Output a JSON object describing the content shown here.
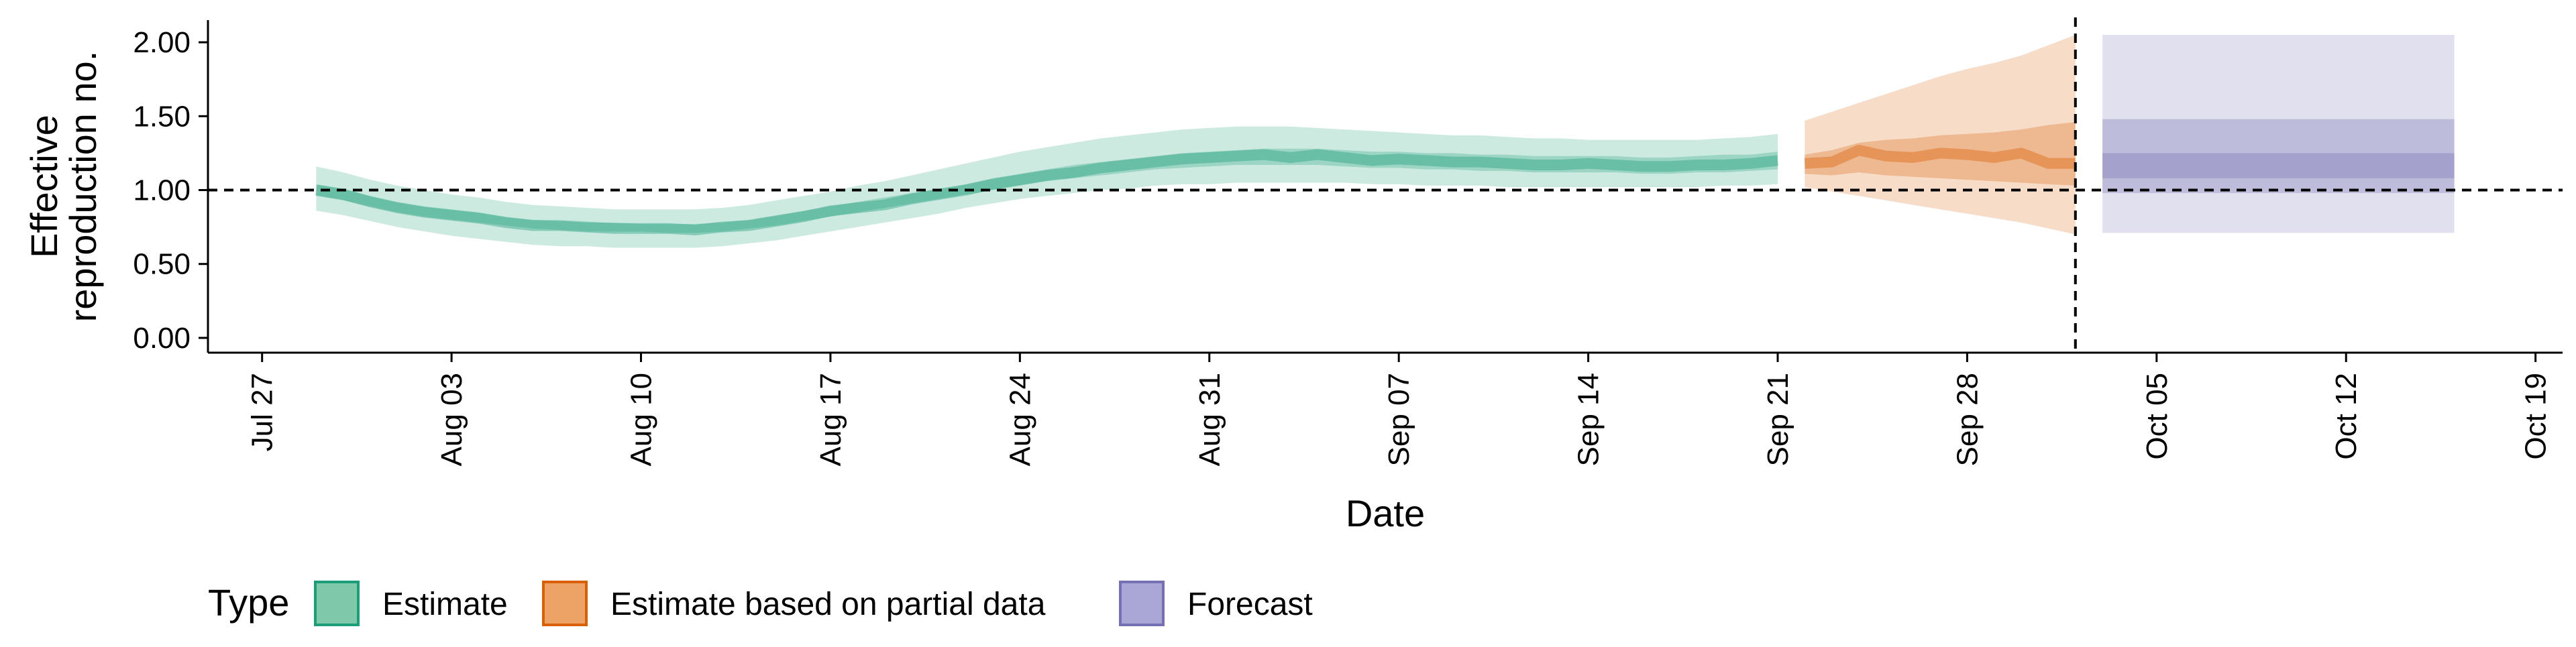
{
  "chart_data": {
    "type": "line",
    "title": "",
    "xlabel": "Date",
    "ylabel_lines": [
      "Effective",
      "reproduction no."
    ],
    "y_ticks": [
      "0.00",
      "0.50",
      "1.00",
      "1.50",
      "2.00"
    ],
    "y_tick_values": [
      0,
      0.5,
      1,
      1.5,
      2
    ],
    "ylim": [
      -0.1,
      2.15
    ],
    "x_range": [
      "2020-07-25",
      "2020-10-20"
    ],
    "x_ticks": [
      "Jul 27",
      "Aug 03",
      "Aug 10",
      "Aug 17",
      "Aug 24",
      "Aug 31",
      "Sep 07",
      "Sep 14",
      "Sep 21",
      "Sep 28",
      "Oct 05",
      "Oct 12",
      "Oct 19"
    ],
    "x_tick_dates": [
      "2020-07-27",
      "2020-08-03",
      "2020-08-10",
      "2020-08-17",
      "2020-08-24",
      "2020-08-31",
      "2020-09-07",
      "2020-09-14",
      "2020-09-21",
      "2020-09-28",
      "2020-10-05",
      "2020-10-12",
      "2020-10-19"
    ],
    "reference_line_y": 1.0,
    "forecast_date": "2020-10-02",
    "grid": false,
    "legend": {
      "title": "Type",
      "position": "bottom",
      "items": [
        {
          "label": "Estimate",
          "fill": "#7fc9aa",
          "stroke": "#1b9e77"
        },
        {
          "label": "Estimate based on partial data",
          "fill": "#eea366",
          "stroke": "#d95f02"
        },
        {
          "label": "Forecast",
          "fill": "#aaa7d6",
          "stroke": "#7570b3"
        }
      ]
    },
    "series": [
      {
        "name": "Estimate",
        "color": "#1b9e77",
        "x": [
          "2020-07-29",
          "2020-07-30",
          "2020-07-31",
          "2020-08-01",
          "2020-08-02",
          "2020-08-03",
          "2020-08-04",
          "2020-08-05",
          "2020-08-06",
          "2020-08-07",
          "2020-08-08",
          "2020-08-09",
          "2020-08-10",
          "2020-08-11",
          "2020-08-12",
          "2020-08-13",
          "2020-08-14",
          "2020-08-15",
          "2020-08-16",
          "2020-08-17",
          "2020-08-18",
          "2020-08-19",
          "2020-08-20",
          "2020-08-21",
          "2020-08-22",
          "2020-08-23",
          "2020-08-24",
          "2020-08-25",
          "2020-08-26",
          "2020-08-27",
          "2020-08-28",
          "2020-08-29",
          "2020-08-30",
          "2020-08-31",
          "2020-09-01",
          "2020-09-02",
          "2020-09-03",
          "2020-09-04",
          "2020-09-05",
          "2020-09-06",
          "2020-09-07",
          "2020-09-08",
          "2020-09-09",
          "2020-09-10",
          "2020-09-11",
          "2020-09-12",
          "2020-09-13",
          "2020-09-14",
          "2020-09-15",
          "2020-09-16",
          "2020-09-17",
          "2020-09-18",
          "2020-09-19",
          "2020-09-20",
          "2020-09-21"
        ],
        "median": [
          1.0,
          0.97,
          0.92,
          0.88,
          0.85,
          0.83,
          0.81,
          0.78,
          0.76,
          0.76,
          0.75,
          0.74,
          0.74,
          0.74,
          0.73,
          0.75,
          0.76,
          0.79,
          0.82,
          0.86,
          0.88,
          0.9,
          0.94,
          0.97,
          1.0,
          1.04,
          1.07,
          1.1,
          1.12,
          1.15,
          1.17,
          1.19,
          1.21,
          1.22,
          1.23,
          1.24,
          1.22,
          1.24,
          1.22,
          1.2,
          1.21,
          1.2,
          1.19,
          1.19,
          1.18,
          1.17,
          1.17,
          1.18,
          1.17,
          1.16,
          1.16,
          1.17,
          1.17,
          1.18,
          1.2
        ],
        "lower_50": [
          0.96,
          0.93,
          0.89,
          0.85,
          0.82,
          0.8,
          0.78,
          0.76,
          0.74,
          0.73,
          0.72,
          0.72,
          0.72,
          0.71,
          0.71,
          0.72,
          0.74,
          0.76,
          0.79,
          0.82,
          0.85,
          0.88,
          0.91,
          0.94,
          0.97,
          1.0,
          1.03,
          1.06,
          1.08,
          1.1,
          1.12,
          1.14,
          1.15,
          1.16,
          1.17,
          1.17,
          1.17,
          1.17,
          1.16,
          1.15,
          1.15,
          1.14,
          1.14,
          1.13,
          1.13,
          1.12,
          1.12,
          1.12,
          1.12,
          1.11,
          1.11,
          1.12,
          1.12,
          1.13,
          1.14
        ],
        "upper_50": [
          1.04,
          1.01,
          0.96,
          0.92,
          0.89,
          0.87,
          0.85,
          0.82,
          0.8,
          0.79,
          0.78,
          0.78,
          0.77,
          0.77,
          0.77,
          0.78,
          0.8,
          0.83,
          0.86,
          0.89,
          0.92,
          0.95,
          0.98,
          1.01,
          1.04,
          1.08,
          1.11,
          1.14,
          1.17,
          1.19,
          1.21,
          1.23,
          1.25,
          1.26,
          1.27,
          1.28,
          1.28,
          1.28,
          1.27,
          1.26,
          1.26,
          1.25,
          1.25,
          1.24,
          1.24,
          1.23,
          1.23,
          1.23,
          1.23,
          1.22,
          1.22,
          1.23,
          1.24,
          1.24,
          1.26
        ],
        "lower_90": [
          0.86,
          0.83,
          0.79,
          0.75,
          0.72,
          0.69,
          0.67,
          0.65,
          0.63,
          0.62,
          0.62,
          0.61,
          0.61,
          0.61,
          0.61,
          0.62,
          0.64,
          0.66,
          0.69,
          0.72,
          0.75,
          0.78,
          0.81,
          0.84,
          0.88,
          0.91,
          0.94,
          0.96,
          0.98,
          1.0,
          1.01,
          1.03,
          1.04,
          1.04,
          1.05,
          1.05,
          1.05,
          1.05,
          1.05,
          1.04,
          1.04,
          1.03,
          1.03,
          1.03,
          1.02,
          1.02,
          1.02,
          1.02,
          1.02,
          1.02,
          1.02,
          1.02,
          1.03,
          1.03,
          1.04
        ],
        "upper_90": [
          1.16,
          1.12,
          1.07,
          1.03,
          1.0,
          0.97,
          0.95,
          0.92,
          0.9,
          0.89,
          0.88,
          0.87,
          0.87,
          0.87,
          0.87,
          0.88,
          0.9,
          0.93,
          0.96,
          0.99,
          1.03,
          1.06,
          1.1,
          1.14,
          1.18,
          1.22,
          1.26,
          1.29,
          1.32,
          1.35,
          1.37,
          1.39,
          1.41,
          1.42,
          1.43,
          1.43,
          1.43,
          1.42,
          1.41,
          1.4,
          1.39,
          1.38,
          1.37,
          1.37,
          1.36,
          1.35,
          1.35,
          1.34,
          1.34,
          1.34,
          1.34,
          1.34,
          1.35,
          1.36,
          1.38
        ]
      },
      {
        "name": "Estimate based on partial data",
        "color": "#d95f02",
        "x": [
          "2020-09-22",
          "2020-09-23",
          "2020-09-24",
          "2020-09-25",
          "2020-09-26",
          "2020-09-27",
          "2020-09-28",
          "2020-09-29",
          "2020-09-30",
          "2020-10-01",
          "2020-10-02"
        ],
        "median": [
          1.18,
          1.19,
          1.27,
          1.23,
          1.22,
          1.25,
          1.24,
          1.22,
          1.25,
          1.18,
          1.18
        ],
        "lower_50": [
          1.11,
          1.1,
          1.12,
          1.1,
          1.09,
          1.08,
          1.07,
          1.06,
          1.05,
          1.04,
          1.03
        ],
        "upper_50": [
          1.24,
          1.27,
          1.32,
          1.34,
          1.35,
          1.37,
          1.38,
          1.39,
          1.41,
          1.44,
          1.46
        ],
        "lower_90": [
          1.02,
          0.99,
          0.96,
          0.93,
          0.9,
          0.87,
          0.84,
          0.81,
          0.78,
          0.74,
          0.7
        ],
        "upper_90": [
          1.47,
          1.53,
          1.59,
          1.65,
          1.71,
          1.77,
          1.82,
          1.86,
          1.91,
          1.98,
          2.05
        ]
      },
      {
        "name": "Forecast",
        "color": "#7570b3",
        "x": [
          "2020-10-03",
          "2020-10-16"
        ],
        "median": [
          1.18,
          1.18
        ],
        "lower_20": [
          1.08,
          1.08
        ],
        "upper_20": [
          1.25,
          1.25
        ],
        "lower_50": [
          0.98,
          0.98
        ],
        "upper_50": [
          1.48,
          1.48
        ],
        "lower_90": [
          0.71,
          0.71
        ],
        "upper_90": [
          2.05,
          2.05
        ]
      }
    ]
  }
}
